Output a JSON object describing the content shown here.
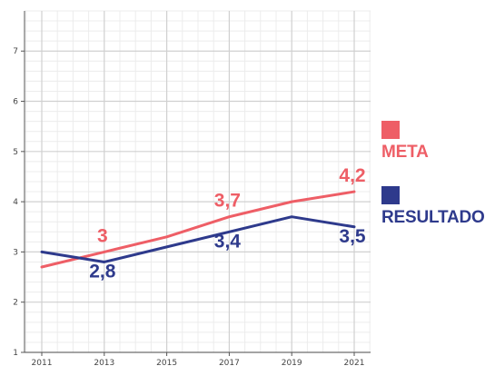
{
  "chart_data": {
    "type": "line",
    "x": [
      2011,
      2013,
      2015,
      2017,
      2019,
      2021
    ],
    "x_ticks": [
      "2011",
      "2013",
      "2015",
      "2017",
      "2019",
      "2021"
    ],
    "y_ticks": [
      "1",
      "2",
      "3",
      "4",
      "5",
      "6",
      "7"
    ],
    "ylim": [
      1,
      7.8
    ],
    "grid": true,
    "legend_position": "right",
    "series": [
      {
        "name": "META",
        "color": "#EE5E66",
        "values": [
          2.7,
          3.0,
          3.3,
          3.7,
          4.0,
          4.2
        ],
        "data_labels": [
          {
            "x": 2013,
            "text": "3"
          },
          {
            "x": 2017,
            "text": "3,7"
          },
          {
            "x": 2021,
            "text": "4,2"
          }
        ]
      },
      {
        "name": "RESULTADO",
        "color": "#2E3A8C",
        "values": [
          3.0,
          2.8,
          3.1,
          3.4,
          3.7,
          3.5
        ],
        "data_labels": [
          {
            "x": 2013,
            "text": "2,8"
          },
          {
            "x": 2017,
            "text": "3,4"
          },
          {
            "x": 2021,
            "text": "3,5"
          }
        ]
      }
    ]
  }
}
